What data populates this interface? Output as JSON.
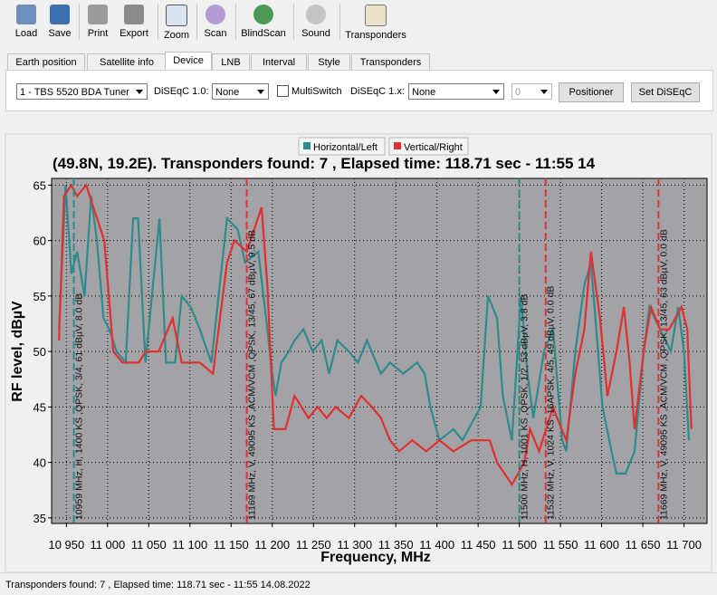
{
  "toolbar": {
    "buttons": [
      "Load",
      "Save",
      "Print",
      "Export",
      "Zoom",
      "Scan",
      "BlindScan",
      "Sound",
      "Transponders"
    ]
  },
  "tabs": [
    "Earth position",
    "Satellite info",
    "Device",
    "LNB",
    "Interval",
    "Style",
    "Transponders"
  ],
  "device": {
    "tuner": "1 - TBS 5520 BDA Tuner",
    "diseqc10_label": "DiSEqC 1.0:",
    "diseqc10_value": "None",
    "multiswitch": "MultiSwitch",
    "diseqc1x_label": "DiSEqC 1.x:",
    "diseqc1x_value": "None",
    "spinner": 0,
    "positioner": "Positioner",
    "set_diseqc": "Set DiSEqC"
  },
  "chart_data": {
    "type": "line",
    "title": "(49.8N, 19.2E). Transponders found: 7 , Elapsed time: 118.71 sec - 11:55 14",
    "xlabel": "Frequency, MHz",
    "ylabel": "RF level, dBµV",
    "xlim": [
      10932,
      11728
    ],
    "ylim": [
      34.5,
      65.6
    ],
    "grid": true,
    "legend": "top",
    "xticks": [
      {
        "value": 10950,
        "label": "10 950"
      },
      {
        "value": 11000,
        "label": "11 000"
      },
      {
        "value": 11050,
        "label": "11 050"
      },
      {
        "value": 11100,
        "label": "11 100"
      },
      {
        "value": 11150,
        "label": "11 150"
      },
      {
        "value": 11200,
        "label": "11 200"
      },
      {
        "value": 11250,
        "label": "11 250"
      },
      {
        "value": 11300,
        "label": "11 300"
      },
      {
        "value": 11350,
        "label": "11 350"
      },
      {
        "value": 11400,
        "label": "11 400"
      },
      {
        "value": 11450,
        "label": "11 450"
      },
      {
        "value": 11500,
        "label": "11 500"
      },
      {
        "value": 11550,
        "label": "11 550"
      },
      {
        "value": 11600,
        "label": "11 600"
      },
      {
        "value": 11650,
        "label": "11 650"
      },
      {
        "value": 11700,
        "label": "11 700"
      }
    ],
    "yticks": [
      35,
      40,
      45,
      50,
      55,
      60,
      65
    ],
    "series": [
      {
        "name": "Horizontal/Left",
        "color": "#2e8b8b",
        "x": [
          10941,
          10949,
          10956,
          10963,
          10972,
          10980,
          10987,
          10995,
          11002,
          11011,
          11022,
          11031,
          11037,
          11046,
          11063,
          11071,
          11082,
          11090,
          11101,
          11112,
          11126,
          11145,
          11158,
          11167,
          11183,
          11194,
          11200,
          11204,
          11211,
          11220,
          11227,
          11238,
          11249,
          11260,
          11269,
          11279,
          11293,
          11304,
          11315,
          11332,
          11343,
          11359,
          11376,
          11385,
          11392,
          11403,
          11420,
          11431,
          11453,
          11462,
          11473,
          11480,
          11491,
          11502,
          11510,
          11517,
          11530,
          11541,
          11552,
          11557,
          11568,
          11579,
          11587,
          11601,
          11612,
          11618,
          11629,
          11640,
          11651,
          11658,
          11671,
          11684,
          11693,
          11700,
          11706
        ],
        "values": [
          52,
          65,
          57,
          59,
          55,
          64,
          60,
          53,
          52,
          50,
          49,
          62,
          62,
          49,
          62,
          49,
          49,
          55,
          54,
          52,
          49,
          62,
          61,
          58,
          59,
          52,
          48,
          46,
          49,
          50,
          51,
          52,
          50,
          51,
          48,
          51,
          50,
          49,
          51,
          48,
          49,
          48,
          49,
          48,
          45,
          42,
          43,
          42,
          45,
          55,
          53,
          46,
          42,
          55,
          48,
          44,
          50,
          52,
          42,
          41,
          50,
          56,
          58,
          45,
          41,
          39,
          39,
          41,
          50,
          54,
          52,
          50,
          54,
          50,
          42
        ]
      },
      {
        "name": "Vertical/Right",
        "color": "#e03030",
        "x": [
          10941,
          10947,
          10956,
          10963,
          10974,
          10996,
          11007,
          11018,
          11038,
          11046,
          11062,
          11079,
          11090,
          11112,
          11128,
          11145,
          11154,
          11169,
          11178,
          11187,
          11194,
          11202,
          11216,
          11227,
          11244,
          11255,
          11266,
          11277,
          11293,
          11308,
          11321,
          11332,
          11343,
          11354,
          11370,
          11387,
          11403,
          11420,
          11442,
          11464,
          11473,
          11491,
          11506,
          11513,
          11524,
          11541,
          11546,
          11557,
          11568,
          11579,
          11587,
          11598,
          11607,
          11618,
          11627,
          11634,
          11640,
          11651,
          11660,
          11671,
          11682,
          11697,
          11704,
          11709
        ],
        "values": [
          51,
          64,
          65,
          64,
          65,
          60,
          50,
          49,
          49,
          50,
          50,
          53,
          49,
          49,
          48,
          58,
          60,
          59,
          61,
          63,
          56,
          43,
          43,
          46,
          44,
          45,
          44,
          45,
          44,
          46,
          45,
          44,
          42,
          41,
          42,
          41,
          42,
          41,
          42,
          42,
          40,
          38,
          40,
          43,
          41,
          45,
          44,
          42,
          48,
          52,
          59,
          53,
          46,
          50,
          54,
          49,
          43,
          50,
          54,
          52,
          52,
          54,
          52,
          43
        ]
      }
    ],
    "markers": [
      {
        "x": 10959,
        "color": "#2e8b8b",
        "label": "10959 MHz, H, 1400 KS ,QPSK, 3/4, 61 dBµV, 8.0 dB"
      },
      {
        "x": 11169,
        "color": "#e03030",
        "label": "11169 MHz, V, 49095 KS ,ACM/VCM ,QPSK, 13/45, 67 dBµV, 9.5 dB"
      },
      {
        "x": 11500,
        "color": "#2e8b8b",
        "label": "11500 MHz, H, 1001 KS ,QPSK, 1/2, 53 dBµV, 3.8 dB"
      },
      {
        "x": 11532,
        "color": "#e03030",
        "label": "11532 MHz, V, 1024 KS ,16APSK, 4/5, 49 dBµV, 0.0 dB"
      },
      {
        "x": 11669,
        "color": "#e03030",
        "label": "11669 MHz, V, 49095 KS ,ACM/VCM ,QPSK, 13/45, 63 dBµV, 0.0 dB"
      }
    ]
  },
  "status": "Transponders found: 7 , Elapsed time: 118.71 sec - 11:55 14.08.2022"
}
